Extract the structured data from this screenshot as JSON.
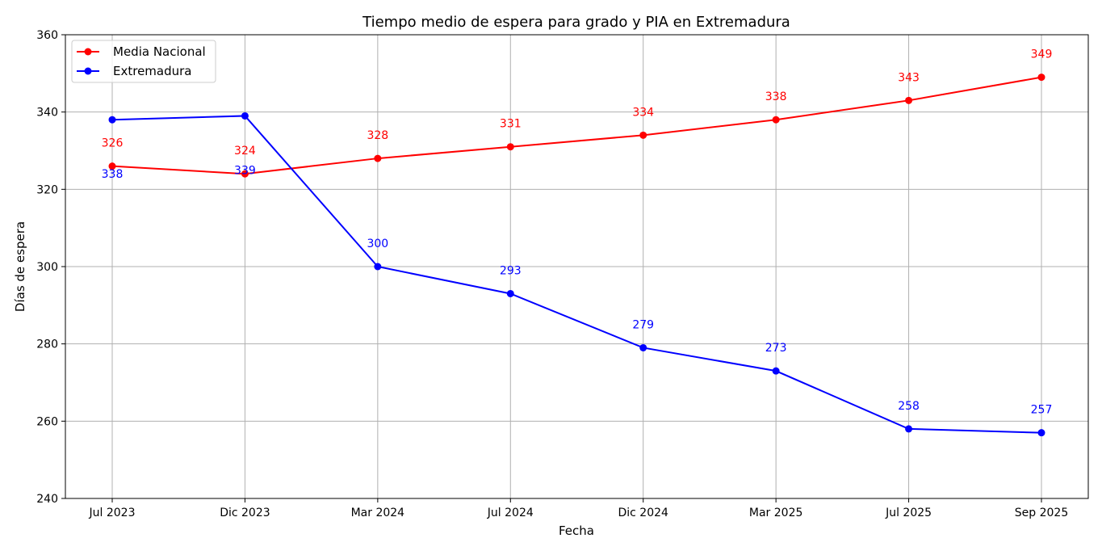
{
  "chart_data": {
    "type": "line",
    "title": "Tiempo medio de espera para grado y PIA en Extremadura",
    "xlabel": "Fecha",
    "ylabel": "Días de espera",
    "categories": [
      "Jul 2023",
      "Dic 2023",
      "Mar 2024",
      "Jul 2024",
      "Dic 2024",
      "Mar 2025",
      "Jul 2025",
      "Sep 2025"
    ],
    "ylim": [
      240,
      360
    ],
    "yticks": [
      240,
      260,
      280,
      300,
      320,
      340,
      360
    ],
    "grid": true,
    "legend_position": "top-left",
    "series": [
      {
        "name": "Media Nacional",
        "color": "#ff0000",
        "values": [
          326,
          324,
          328,
          331,
          334,
          338,
          343,
          349
        ]
      },
      {
        "name": "Extremadura",
        "color": "#0000ff",
        "values": [
          338,
          339,
          300,
          293,
          279,
          273,
          258,
          257
        ]
      }
    ]
  }
}
